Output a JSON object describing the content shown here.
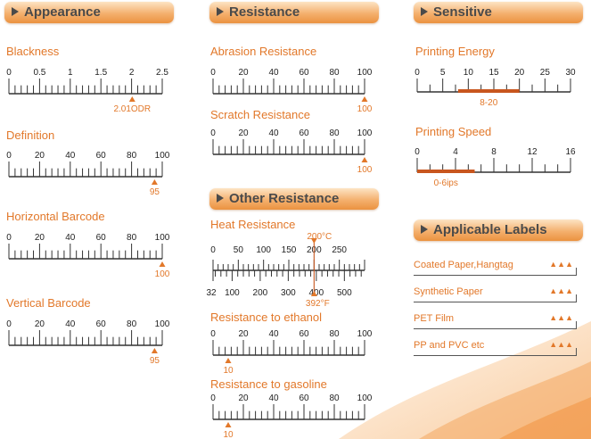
{
  "headers": {
    "appearance": "Appearance",
    "resistance": "Resistance",
    "sensitive": "Sensitive",
    "other_resistance": "Other Resistance",
    "applicable_labels": "Applicable Labels"
  },
  "scales": {
    "blackness": {
      "label": "Blackness",
      "ticks": [
        "0",
        "0.5",
        "1",
        "1.5",
        "2",
        "2.5"
      ],
      "marker_value": 2.01,
      "marker_text": "2.01ODR"
    },
    "definition": {
      "label": "Definition",
      "ticks": [
        "0",
        "20",
        "40",
        "60",
        "80",
        "100"
      ],
      "marker_value": 95,
      "marker_text": "95"
    },
    "horizontal_barcode": {
      "label": "Horizontal Barcode",
      "ticks": [
        "0",
        "20",
        "40",
        "60",
        "80",
        "100"
      ],
      "marker_value": 100,
      "marker_text": "100"
    },
    "vertical_barcode": {
      "label": "Vertical Barcode",
      "ticks": [
        "0",
        "20",
        "40",
        "60",
        "80",
        "100"
      ],
      "marker_value": 95,
      "marker_text": "95"
    },
    "abrasion_resistance": {
      "label": "Abrasion Resistance",
      "ticks": [
        "0",
        "20",
        "40",
        "60",
        "80",
        "100"
      ],
      "marker_value": 100,
      "marker_text": "100"
    },
    "scratch_resistance": {
      "label": "Scratch Resistance",
      "ticks": [
        "0",
        "20",
        "40",
        "60",
        "80",
        "100"
      ],
      "marker_value": 100,
      "marker_text": "100"
    },
    "heat_resistance": {
      "label": "Heat Resistance",
      "celsius_ticks": [
        "0",
        "50",
        "100",
        "150",
        "200",
        "250"
      ],
      "fahrenheit_ticks": [
        "32",
        "100",
        "200",
        "300",
        "400",
        "500"
      ],
      "marker_c_value": 200,
      "marker_c_text": "200°C",
      "marker_f_text": "392°F"
    },
    "resistance_to_ethanol": {
      "label": "Resistance to ethanol",
      "ticks": [
        "0",
        "20",
        "40",
        "60",
        "80",
        "100"
      ],
      "marker_value": 10,
      "marker_text": "10"
    },
    "resistance_to_gasoline": {
      "label": "Resistance to gasoline",
      "ticks": [
        "0",
        "20",
        "40",
        "60",
        "80",
        "100"
      ],
      "marker_value": 10,
      "marker_text": "10"
    },
    "printing_energy": {
      "label": "Printing Energy",
      "ticks": [
        "0",
        "5",
        "10",
        "15",
        "20",
        "25",
        "30"
      ],
      "range": [
        8,
        20
      ],
      "range_text": "8-20"
    },
    "printing_speed": {
      "label": "Printing Speed",
      "ticks": [
        "0",
        "4",
        "8",
        "12",
        "16"
      ],
      "range": [
        0,
        6
      ],
      "range_text": "0-6ips"
    }
  },
  "applicable_labels": [
    {
      "name": "Coated Paper,Hangtag",
      "rating": "▲▲▲"
    },
    {
      "name": "Synthetic Paper",
      "rating": "▲▲▲"
    },
    {
      "name": "PET Film",
      "rating": "▲▲▲"
    },
    {
      "name": "PP and PVC etc",
      "rating": "▲▲▲"
    }
  ],
  "colors": {
    "accent": "#e2782a",
    "range_bar": "#c8561e",
    "text_dark": "#4a4a4a"
  }
}
